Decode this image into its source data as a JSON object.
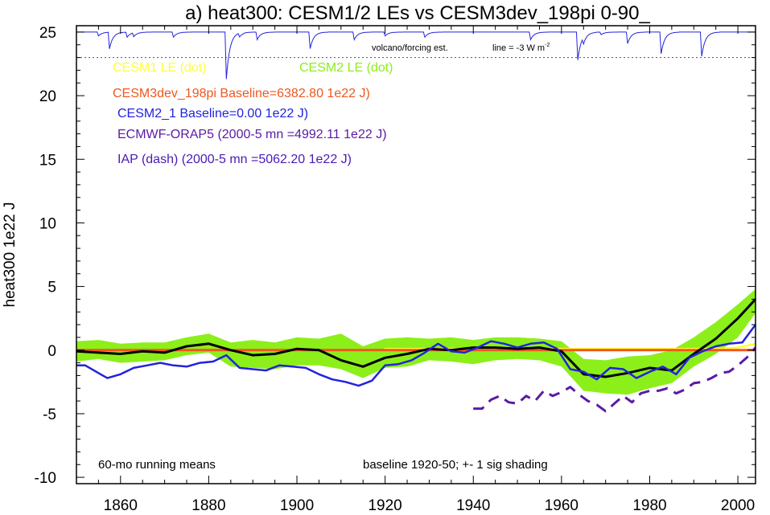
{
  "chart_data": {
    "type": "line",
    "title": "a) heat300: CESM1/2 LEs vs CESM3dev_198pi 0-90_",
    "ylabel": "heat300 1e22 J",
    "xlabel": "",
    "xlim": [
      1850,
      2004
    ],
    "ylim": [
      -10.5,
      25.5
    ],
    "x_ticks": [
      1860,
      1880,
      1900,
      1920,
      1940,
      1960,
      1980,
      2000
    ],
    "x_tick_labels": [
      "1860",
      "1880",
      "1900",
      "1920",
      "1940",
      "1960",
      "1980",
      "2000"
    ],
    "y_ticks": [
      -10,
      -5,
      0,
      5,
      10,
      15,
      20,
      25
    ],
    "y_tick_labels": [
      "-10",
      "-5",
      "0",
      "5",
      "10",
      "15",
      "20",
      "25"
    ],
    "zero_line": true,
    "legend": [
      {
        "label": "CESM1 LE (dot)",
        "color": "#ffff33"
      },
      {
        "label": "CESM2 LE (dot)",
        "color": "#8cef1a"
      },
      {
        "label": "CESM3dev_198pi Baseline=6382.80 1e22 J)",
        "color": "#f0561e"
      },
      {
        "label": "CESM2_1 Baseline=0.00 1e22 J)",
        "color": "#2222dd"
      },
      {
        "label": "ECMWF-ORAP5 (2000-5 mn =4992.11 1e22 J)",
        "color": "#5a1aa6"
      },
      {
        "label": "IAP (dash) (2000-5 mn =5062.20 1e22 J)",
        "color": "#4a1ab6"
      }
    ],
    "annotations": {
      "volcano_label": "volcano/forcing est.",
      "volcano_line": "line = -3 W m",
      "volcano_line_sup": "-2",
      "bottom_left": "60-mo running means",
      "bottom_right": "baseline 1920-50; +- 1 sig shading"
    },
    "volcano": {
      "baseline": 25,
      "reference_line": 23,
      "events": [
        [
          1855,
          0.3
        ],
        [
          1857.5,
          1.3
        ],
        [
          1861.5,
          0.4
        ],
        [
          1863,
          0.3
        ],
        [
          1872,
          0.4
        ],
        [
          1884,
          3.7
        ],
        [
          1887,
          0.3
        ],
        [
          1891,
          0.6
        ],
        [
          1903,
          1.3
        ],
        [
          1913,
          0.6
        ],
        [
          1920,
          0.3
        ],
        [
          1929,
          0.4
        ],
        [
          1953,
          0.6
        ],
        [
          1963.7,
          2.2
        ],
        [
          1965,
          0.5
        ],
        [
          1969,
          0.2
        ],
        [
          1975,
          0.9
        ],
        [
          1982.6,
          1.7
        ],
        [
          1991.8,
          1.9
        ]
      ]
    },
    "series": [
      {
        "name": "CESM2 LE (dot)",
        "color": "#8cef1a",
        "kind": "band",
        "x": [
          1850,
          1855,
          1860,
          1865,
          1870,
          1875,
          1880,
          1885,
          1890,
          1895,
          1900,
          1905,
          1910,
          1915,
          1920,
          1925,
          1930,
          1935,
          1940,
          1945,
          1950,
          1955,
          1960,
          1965,
          1970,
          1975,
          1980,
          1985,
          1990,
          1995,
          2000,
          2004
        ],
        "lower": [
          -0.9,
          -0.7,
          -1.0,
          -0.9,
          -0.8,
          -0.4,
          -0.2,
          -1.3,
          -1.4,
          -1.5,
          -1.2,
          -1.2,
          -1.5,
          -2.2,
          -1.4,
          -1.3,
          -0.8,
          -0.9,
          -1.1,
          -0.8,
          -0.7,
          -0.8,
          -1.3,
          -3.2,
          -3.4,
          -3.5,
          -3.0,
          -2.6,
          -1.3,
          -0.3,
          1.0,
          2.9
        ],
        "upper": [
          0.7,
          0.8,
          0.5,
          0.6,
          0.6,
          1.0,
          1.3,
          0.6,
          0.8,
          0.6,
          1.0,
          0.9,
          1.3,
          0.3,
          0.9,
          1.0,
          0.9,
          1.0,
          0.8,
          1.0,
          1.0,
          0.9,
          0.7,
          -0.7,
          -0.8,
          -0.5,
          -0.4,
          0.0,
          1.0,
          2.2,
          3.6,
          4.8
        ]
      },
      {
        "name": "CESM1 LE (dot)",
        "color": "#ffff33",
        "kind": "line",
        "x": [
          1920,
          1940,
          1960,
          1980,
          1995,
          2000,
          2004
        ],
        "y": [
          0.1,
          0.1,
          0.1,
          0.1,
          0.1,
          0.2,
          0.5
        ]
      },
      {
        "name": "CESM3dev_198pi",
        "color": "#f0561e",
        "kind": "line",
        "x": [
          1850,
          1880,
          1920,
          1960,
          2000,
          2004
        ],
        "y": [
          0.0,
          0.0,
          0.0,
          0.0,
          0.0,
          0.0
        ]
      },
      {
        "name": "CESM2 ensemble mean",
        "color": "#000000",
        "kind": "line",
        "x": [
          1850,
          1855,
          1860,
          1865,
          1870,
          1875,
          1880,
          1885,
          1890,
          1895,
          1900,
          1905,
          1910,
          1915,
          1920,
          1925,
          1930,
          1935,
          1940,
          1945,
          1950,
          1955,
          1960,
          1965,
          1970,
          1975,
          1980,
          1985,
          1990,
          1995,
          2000,
          2004
        ],
        "y": [
          -0.1,
          -0.2,
          -0.3,
          -0.1,
          -0.2,
          0.3,
          0.5,
          0.0,
          -0.4,
          -0.3,
          0.1,
          0.0,
          -0.8,
          -1.3,
          -0.6,
          -0.3,
          0.1,
          0.0,
          0.2,
          0.2,
          0.1,
          0.2,
          -0.1,
          -1.9,
          -2.1,
          -1.8,
          -1.4,
          -1.6,
          -0.3,
          0.9,
          2.5,
          4.0
        ]
      },
      {
        "name": "CESM2_1 Baseline=0.00 1e22 J)",
        "color": "#2222dd",
        "kind": "line",
        "x": [
          1850,
          1852,
          1855,
          1857,
          1860,
          1863,
          1866,
          1869,
          1872,
          1875,
          1878,
          1881,
          1884,
          1887,
          1890,
          1893,
          1896,
          1899,
          1902,
          1905,
          1908,
          1911,
          1914,
          1917,
          1920,
          1923,
          1926,
          1929,
          1932,
          1935,
          1938,
          1941,
          1944,
          1947,
          1950,
          1953,
          1956,
          1959,
          1962,
          1965,
          1968,
          1971,
          1974,
          1977,
          1980,
          1983,
          1986,
          1989,
          1992,
          1995,
          1998,
          2001,
          2004
        ],
        "y": [
          -1.2,
          -1.2,
          -1.8,
          -2.2,
          -1.9,
          -1.4,
          -1.2,
          -1.0,
          -1.2,
          -1.3,
          -1.0,
          -0.9,
          -0.4,
          -1.4,
          -1.5,
          -1.6,
          -1.2,
          -1.3,
          -1.4,
          -1.9,
          -2.3,
          -2.5,
          -2.8,
          -2.4,
          -1.2,
          -1.1,
          -0.8,
          -0.2,
          0.5,
          -0.1,
          -0.2,
          0.2,
          0.7,
          0.5,
          0.2,
          0.5,
          0.6,
          0.1,
          -1.5,
          -1.7,
          -2.3,
          -1.4,
          -1.5,
          -2.2,
          -1.7,
          -1.3,
          -1.9,
          -0.6,
          -0.1,
          0.3,
          0.5,
          0.6,
          2.0
        ]
      },
      {
        "name": "IAP (dash) (2000-5 mn =5062.20 1e22 J)",
        "color": "#5a1aa6",
        "kind": "dash",
        "x": [
          1940,
          1942,
          1944,
          1946,
          1948,
          1950,
          1952,
          1954,
          1956,
          1958,
          1960,
          1962,
          1964,
          1966,
          1968,
          1970,
          1972,
          1974,
          1976,
          1978,
          1980,
          1982,
          1984,
          1986,
          1988,
          1990,
          1992,
          1994,
          1996,
          1998,
          2000,
          2002,
          2004
        ],
        "y": [
          -4.6,
          -4.6,
          -3.9,
          -3.6,
          -4.1,
          -4.2,
          -3.6,
          -4.0,
          -3.2,
          -3.6,
          -3.3,
          -2.9,
          -3.5,
          -4.0,
          -4.3,
          -4.8,
          -4.2,
          -3.6,
          -4.1,
          -3.4,
          -3.2,
          -3.2,
          -3.0,
          -3.4,
          -3.1,
          -2.6,
          -2.5,
          -2.2,
          -1.8,
          -1.7,
          -1.2,
          -0.6,
          0.2
        ]
      }
    ]
  }
}
